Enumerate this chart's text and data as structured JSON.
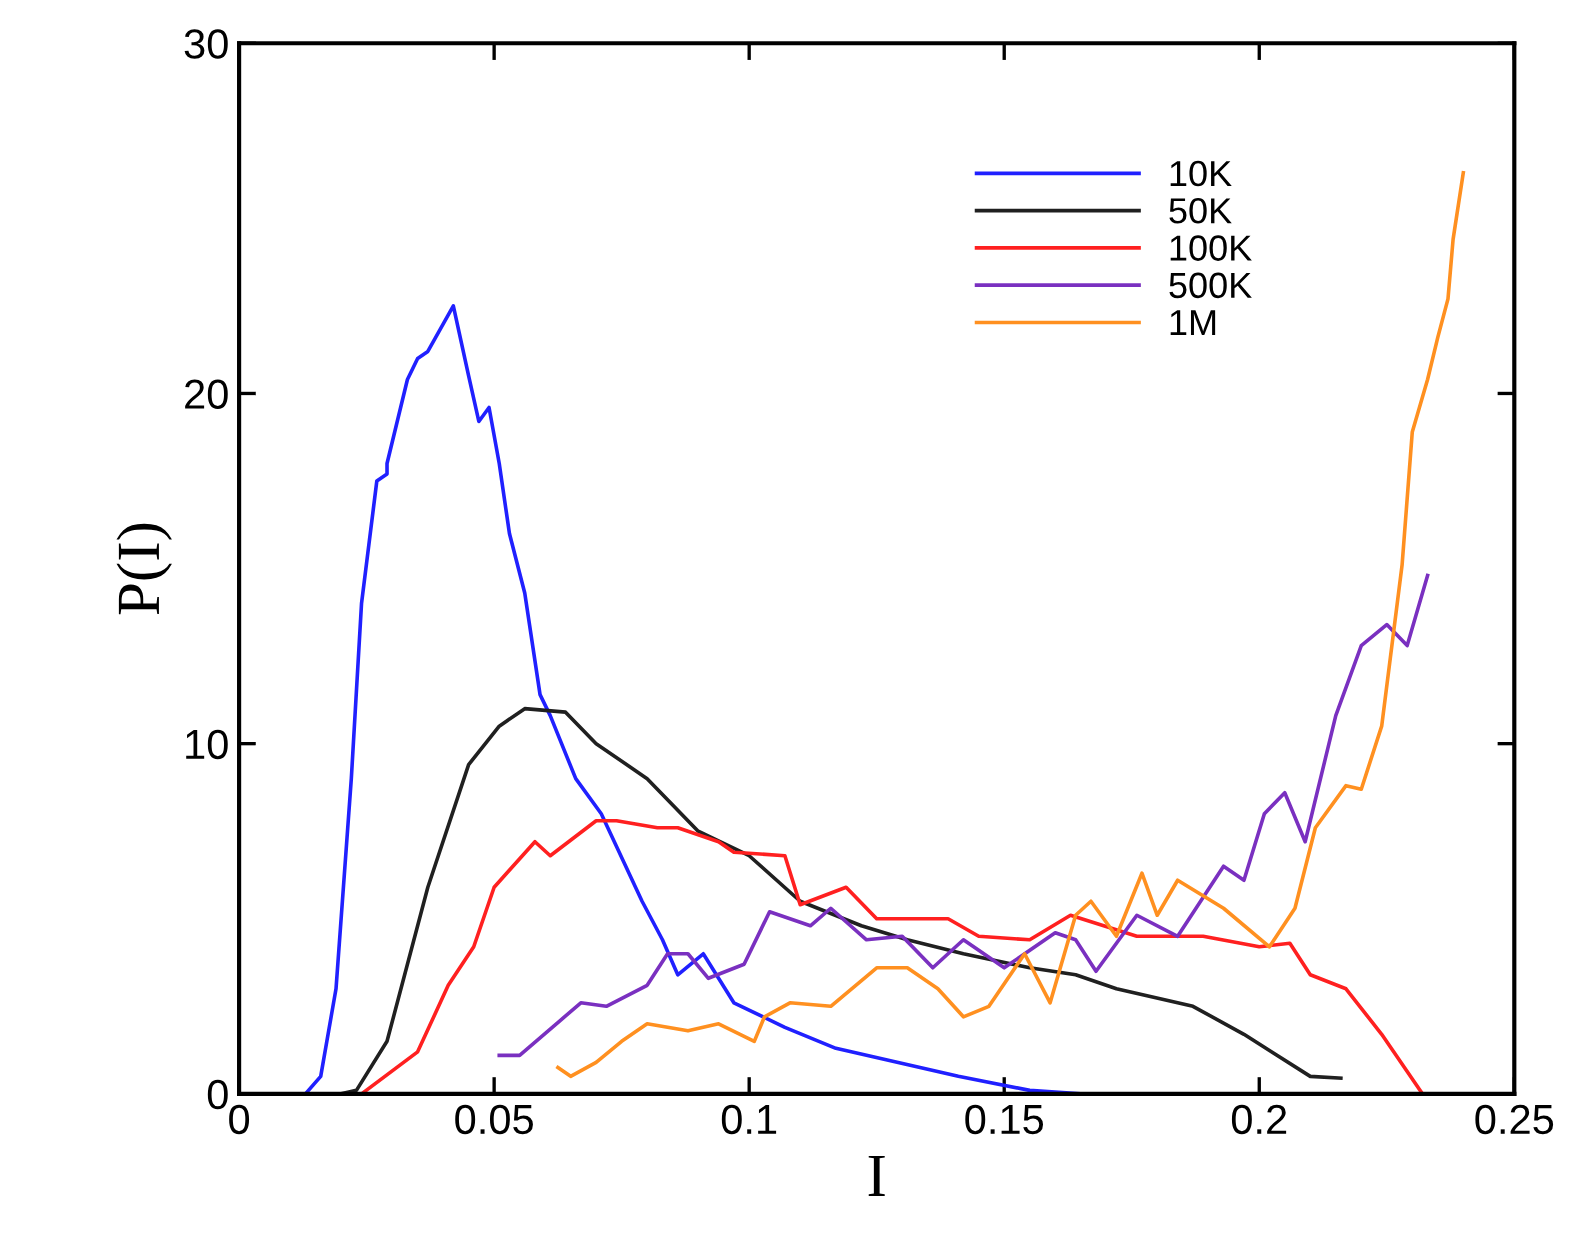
{
  "chart_data": {
    "type": "line",
    "xlabel": "I",
    "ylabel": "P(I)",
    "xlim": [
      0,
      0.25
    ],
    "ylim": [
      0,
      30
    ],
    "xticks": [
      0,
      0.05,
      0.1,
      0.15,
      0.2,
      0.25
    ],
    "yticks": [
      0,
      10,
      20,
      30
    ],
    "grid": false,
    "legend": "top right",
    "series": [
      {
        "name": "10K",
        "color": "#2020ff",
        "x": [
          0.013,
          0.016,
          0.019,
          0.022,
          0.024,
          0.027,
          0.029,
          0.029,
          0.033,
          0.035,
          0.037,
          0.042,
          0.045,
          0.047,
          0.049,
          0.051,
          0.053,
          0.056,
          0.059,
          0.061,
          0.066,
          0.071,
          0.079,
          0.083,
          0.086,
          0.091,
          0.097,
          0.107,
          0.117,
          0.129,
          0.141,
          0.155,
          0.165,
          0.17
        ],
        "values": [
          0,
          0.5,
          3,
          9,
          14,
          17.5,
          17.7,
          18,
          20.4,
          21,
          21.2,
          22.5,
          20.5,
          19.2,
          19.6,
          18,
          16,
          14.3,
          11.4,
          10.8,
          9,
          8,
          5.5,
          4.4,
          3.4,
          4,
          2.6,
          1.9,
          1.3,
          0.9,
          0.5,
          0.1,
          0,
          0
        ]
      },
      {
        "name": "50K",
        "color": "#202020",
        "x": [
          0.02,
          0.023,
          0.029,
          0.037,
          0.045,
          0.051,
          0.056,
          0.064,
          0.07,
          0.08,
          0.09,
          0.1,
          0.11,
          0.122,
          0.131,
          0.142,
          0.155,
          0.164,
          0.172,
          0.187,
          0.197,
          0.21,
          0.216
        ],
        "values": [
          0,
          0.1,
          1.5,
          5.9,
          9.4,
          10.5,
          11,
          10.9,
          10,
          9,
          7.5,
          6.8,
          5.5,
          4.8,
          4.4,
          4,
          3.6,
          3.4,
          3,
          2.5,
          1.7,
          0.5,
          0.45
        ]
      },
      {
        "name": "100K",
        "color": "#ff2020",
        "x": [
          0.024,
          0.035,
          0.041,
          0.046,
          0.05,
          0.058,
          0.061,
          0.07,
          0.074,
          0.082,
          0.086,
          0.094,
          0.097,
          0.107,
          0.11,
          0.119,
          0.125,
          0.139,
          0.145,
          0.155,
          0.163,
          0.176,
          0.189,
          0.2,
          0.206,
          0.21,
          0.217,
          0.224,
          0.232
        ],
        "values": [
          0,
          1.2,
          3.1,
          4.2,
          5.9,
          7.2,
          6.8,
          7.8,
          7.8,
          7.6,
          7.6,
          7.2,
          6.9,
          6.8,
          5.4,
          5.9,
          5,
          5,
          4.5,
          4.4,
          5.1,
          4.5,
          4.5,
          4.2,
          4.3,
          3.4,
          3,
          1.7,
          0
        ]
      },
      {
        "name": "500K",
        "color": "#7a30c0",
        "x": [
          0.051,
          0.055,
          0.063,
          0.067,
          0.072,
          0.08,
          0.084,
          0.088,
          0.092,
          0.099,
          0.104,
          0.112,
          0.116,
          0.123,
          0.13,
          0.136,
          0.142,
          0.15,
          0.16,
          0.164,
          0.168,
          0.176,
          0.184,
          0.193,
          0.197,
          0.201,
          0.205,
          0.209,
          0.215,
          0.22,
          0.225,
          0.229,
          0.233
        ],
        "values": [
          1.1,
          1.1,
          2.1,
          2.6,
          2.5,
          3.1,
          4,
          4,
          3.3,
          3.7,
          5.2,
          4.8,
          5.3,
          4.4,
          4.5,
          3.6,
          4.4,
          3.6,
          4.6,
          4.4,
          3.5,
          5.1,
          4.5,
          6.5,
          6.1,
          8,
          8.6,
          7.2,
          10.8,
          12.8,
          13.4,
          12.8,
          14.8
        ]
      },
      {
        "name": "1M",
        "color": "#ff9020",
        "x": [
          0.0625,
          0.065,
          0.07,
          0.075,
          0.08,
          0.088,
          0.094,
          0.101,
          0.103,
          0.108,
          0.116,
          0.125,
          0.131,
          0.137,
          0.142,
          0.147,
          0.154,
          0.159,
          0.164,
          0.167,
          0.172,
          0.177,
          0.18,
          0.184,
          0.193,
          0.202,
          0.207,
          0.211,
          0.217,
          0.22,
          0.224,
          0.228,
          0.23,
          0.233,
          0.235,
          0.237,
          0.238,
          0.24
        ],
        "values": [
          0.75,
          0.5,
          0.9,
          1.5,
          2,
          1.8,
          2,
          1.5,
          2.2,
          2.6,
          2.5,
          3.6,
          3.6,
          3,
          2.2,
          2.5,
          4,
          2.6,
          5.1,
          5.5,
          4.5,
          6.3,
          5.1,
          6.1,
          5.3,
          4.2,
          5.3,
          7.6,
          8.8,
          8.7,
          10.5,
          15.1,
          18.9,
          20.4,
          21.6,
          22.7,
          24.4,
          26.3
        ]
      }
    ]
  }
}
